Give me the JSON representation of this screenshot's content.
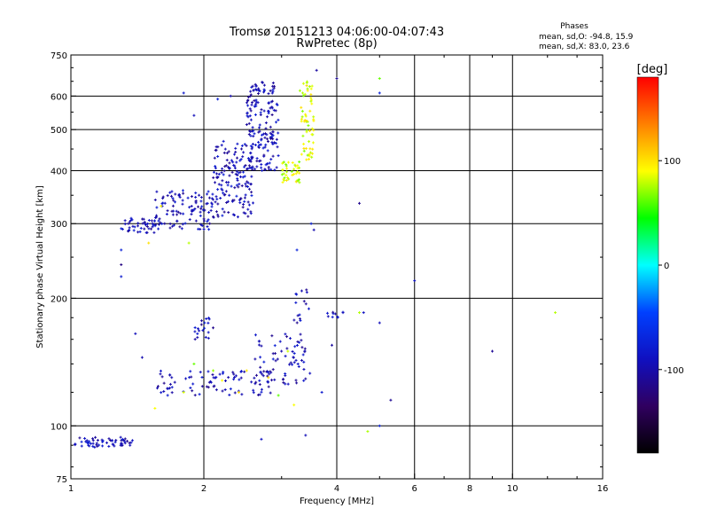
{
  "chart_data": {
    "type": "scatter",
    "title": "Tromsø 20151213 04:06:00-04:07:43",
    "subtitle": "RwPretec (8p)",
    "xlabel": "Frequency [MHz]",
    "ylabel": "Stationary phase Virtual Height [km]",
    "xscale": "log",
    "yscale": "log",
    "xlim": [
      1,
      16
    ],
    "ylim": [
      75,
      750
    ],
    "x_ticks": [
      1,
      2,
      4,
      6,
      8,
      10,
      16
    ],
    "x_tick_labels": [
      "1",
      "2",
      "4",
      "6",
      "8",
      "10",
      "16"
    ],
    "x_grid": [
      2,
      4,
      6,
      8,
      10
    ],
    "y_ticks": [
      75,
      100,
      200,
      300,
      400,
      500,
      600,
      750
    ],
    "y_tick_labels": [
      "75",
      "100",
      "200",
      "300",
      "400",
      "500",
      "600",
      "750"
    ],
    "y_grid": [
      100,
      200,
      300,
      400,
      500,
      600
    ],
    "grid": true,
    "legend": {
      "title": "Phases",
      "line1": "mean, sd,O: -94.8, 15.9",
      "line2": "mean, sd,X:  83.0, 23.6"
    },
    "colorbar": {
      "label": "[deg]",
      "range": [
        -180,
        180
      ],
      "ticks": [
        100,
        0,
        -100
      ],
      "tick_labels": [
        "100",
        "0",
        "-100"
      ],
      "colors": [
        "#ff0000",
        "#ff8000",
        "#ffff00",
        "#00ff00",
        "#00ffff",
        "#0040ff",
        "#1010c0",
        "#300060",
        "#000000"
      ]
    },
    "series": [
      {
        "mode": "O",
        "description_phase": -95,
        "clusters": [
          {
            "f_range": [
              1.02,
              1.38
            ],
            "h_range": [
              89,
              94
            ],
            "n": 60
          },
          {
            "f_range": [
              1.3,
              1.55
            ],
            "h_range": [
              285,
              310
            ],
            "n": 40
          },
          {
            "f_range": [
              1.55,
              2.1
            ],
            "h_range": [
              290,
              360
            ],
            "n": 110
          },
          {
            "f_range": [
              2.1,
              2.6
            ],
            "h_range": [
              310,
              470
            ],
            "n": 150
          },
          {
            "f_range": [
              2.5,
              2.95
            ],
            "h_range": [
              400,
              650
            ],
            "n": 170
          },
          {
            "f_range": [
              1.55,
              2.9
            ],
            "h_range": [
              118,
              135
            ],
            "n": 90
          },
          {
            "f_range": [
              2.6,
              3.5
            ],
            "h_range": [
              125,
              165
            ],
            "n": 70
          },
          {
            "f_range": [
              1.9,
              2.1
            ],
            "h_range": [
              160,
              180
            ],
            "n": 20
          },
          {
            "f_range": [
              3.2,
              3.5
            ],
            "h_range": [
              175,
              210
            ],
            "n": 15
          },
          {
            "f_range": [
              3.8,
              4.15
            ],
            "h_range": [
              180,
              186
            ],
            "n": 10
          }
        ],
        "sparse_points": [
          [
            1.3,
            260
          ],
          [
            1.3,
            240
          ],
          [
            1.3,
            225
          ],
          [
            1.8,
            610
          ],
          [
            1.9,
            540
          ],
          [
            3.5,
            300
          ],
          [
            3.55,
            290
          ],
          [
            3.25,
            260
          ],
          [
            3.6,
            690
          ],
          [
            4.0,
            660
          ],
          [
            5.0,
            610
          ],
          [
            4.5,
            335
          ],
          [
            6.0,
            220
          ],
          [
            9.0,
            150
          ],
          [
            5.0,
            175
          ],
          [
            5.3,
            115
          ],
          [
            5.0,
            100
          ],
          [
            1.4,
            165
          ],
          [
            1.45,
            145
          ],
          [
            3.4,
            95
          ],
          [
            2.7,
            93
          ],
          [
            3.7,
            120
          ],
          [
            3.9,
            155
          ],
          [
            4.6,
            185
          ],
          [
            1.3,
            292
          ],
          [
            1.35,
            300
          ],
          [
            2.3,
            600
          ],
          [
            2.15,
            590
          ]
        ]
      },
      {
        "mode": "X",
        "description_phase": 83,
        "clusters": [
          {
            "f_range": [
              3.0,
              3.3
            ],
            "h_range": [
              375,
              420
            ],
            "n": 40
          },
          {
            "f_range": [
              3.3,
              3.55
            ],
            "h_range": [
              420,
              650
            ],
            "n": 60
          }
        ],
        "sparse_points": [
          [
            1.5,
            270
          ],
          [
            1.6,
            330
          ],
          [
            1.55,
            110
          ],
          [
            1.8,
            120
          ],
          [
            2.1,
            135
          ],
          [
            2.4,
            120
          ],
          [
            2.8,
            130
          ],
          [
            2.95,
            118
          ],
          [
            12.5,
            185
          ],
          [
            4.7,
            97
          ],
          [
            4.5,
            185
          ],
          [
            5.0,
            660
          ],
          [
            3.2,
            112
          ],
          [
            1.85,
            270
          ],
          [
            1.9,
            140
          ],
          [
            2.5,
            135
          ],
          [
            2.2,
            128
          ],
          [
            3.1,
            150
          ]
        ]
      }
    ]
  }
}
